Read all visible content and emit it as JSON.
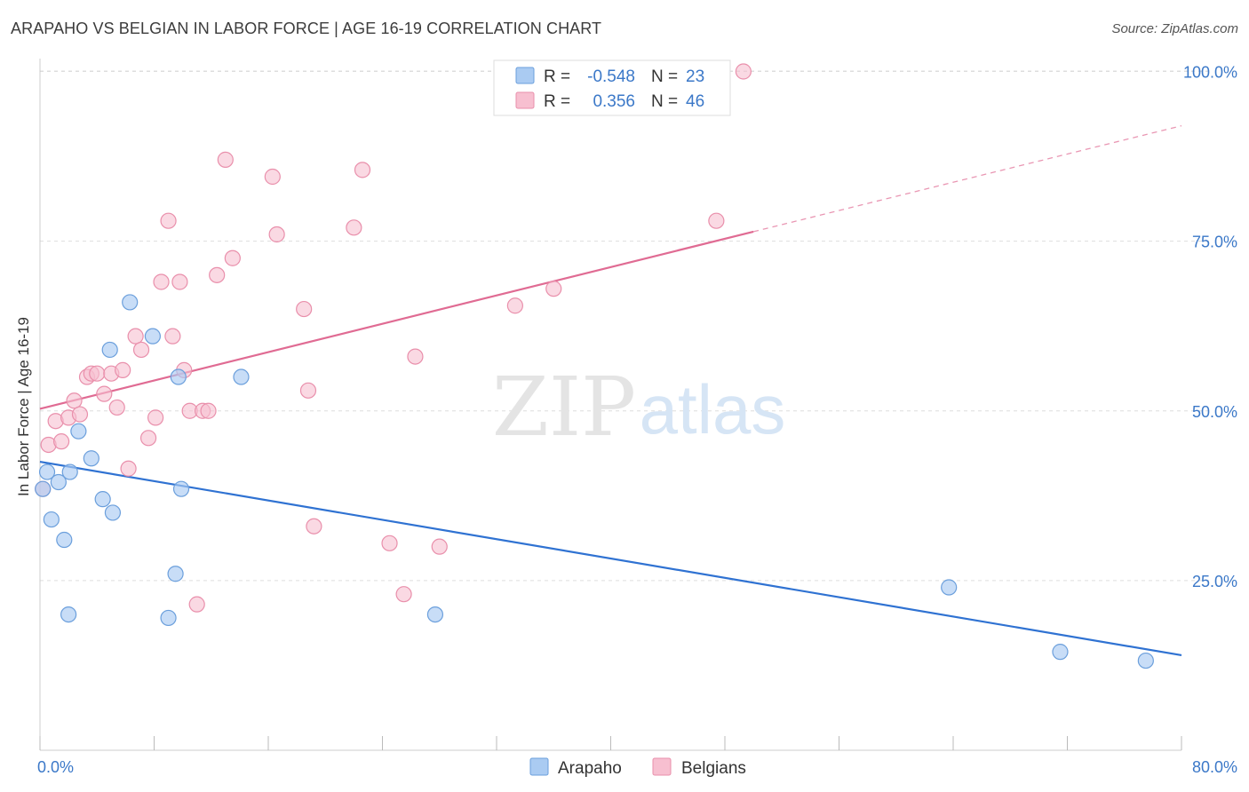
{
  "title": "ARAPAHO VS BELGIAN IN LABOR FORCE | AGE 16-19 CORRELATION CHART",
  "source": "Source: ZipAtlas.com",
  "watermark": {
    "zip": "ZIP",
    "atlas": "atlas"
  },
  "colors": {
    "arapaho_fill": "#aacbf2",
    "arapaho_stroke": "#6b9fdc",
    "arapaho_line": "#2f72d2",
    "belgian_fill": "#f7bfd0",
    "belgian_stroke": "#e98fab",
    "belgian_line": "#e06b93",
    "axis_label": "#3b78c8",
    "grid": "#dddddd"
  },
  "legend": {
    "r_label": "R =",
    "n_label": "N =",
    "rows": [
      {
        "series": "Arapaho",
        "r": "-0.548",
        "n": "23"
      },
      {
        "series": "Belgians",
        "r": "0.356",
        "n": "46"
      }
    ]
  },
  "chart_data": {
    "type": "scatter",
    "title": "ARAPAHO VS BELGIAN IN LABOR FORCE | AGE 16-19 CORRELATION CHART",
    "xlabel": "",
    "ylabel": "In Labor Force | Age 16-19",
    "xlim": [
      0,
      80
    ],
    "ylim": [
      0,
      102
    ],
    "x_tick_labels": [
      {
        "value": 0,
        "label": "0.0%"
      },
      {
        "value": 80,
        "label": "80.0%"
      }
    ],
    "y_tick_labels": [
      {
        "value": 25,
        "label": "25.0%"
      },
      {
        "value": 50,
        "label": "50.0%"
      },
      {
        "value": 75,
        "label": "75.0%"
      },
      {
        "value": 100,
        "label": "100.0%"
      }
    ],
    "grid": true,
    "legend_position": "bottom-center",
    "series": [
      {
        "name": "Arapaho",
        "r": -0.548,
        "n": 23,
        "points": [
          [
            0.2,
            38.5
          ],
          [
            0.5,
            41
          ],
          [
            0.8,
            34
          ],
          [
            1.3,
            39.5
          ],
          [
            1.7,
            31
          ],
          [
            2.0,
            20
          ],
          [
            2.1,
            41
          ],
          [
            2.7,
            47
          ],
          [
            3.6,
            43
          ],
          [
            4.4,
            37
          ],
          [
            5.1,
            35
          ],
          [
            4.9,
            59
          ],
          [
            6.3,
            66
          ],
          [
            7.9,
            61
          ],
          [
            9.7,
            55
          ],
          [
            9.9,
            38.5
          ],
          [
            9.5,
            26
          ],
          [
            9.0,
            19.5
          ],
          [
            14.1,
            55
          ],
          [
            27.7,
            20
          ],
          [
            63.7,
            24
          ],
          [
            71.5,
            14.5
          ],
          [
            77.5,
            13.2
          ]
        ],
        "trend": {
          "x": [
            0,
            80
          ],
          "y": [
            42.5,
            14
          ]
        }
      },
      {
        "name": "Belgians",
        "r": 0.356,
        "n": 46,
        "points": [
          [
            0.2,
            38.5
          ],
          [
            0.6,
            45
          ],
          [
            1.1,
            48.5
          ],
          [
            1.5,
            45.5
          ],
          [
            2.0,
            49
          ],
          [
            2.4,
            51.5
          ],
          [
            2.8,
            49.5
          ],
          [
            3.3,
            55
          ],
          [
            3.6,
            55.5
          ],
          [
            4.0,
            55.5
          ],
          [
            4.5,
            52.5
          ],
          [
            5.0,
            55.5
          ],
          [
            5.4,
            50.5
          ],
          [
            5.8,
            56
          ],
          [
            6.2,
            41.5
          ],
          [
            6.7,
            61
          ],
          [
            7.1,
            59
          ],
          [
            7.6,
            46
          ],
          [
            8.1,
            49
          ],
          [
            8.5,
            69
          ],
          [
            9.0,
            78
          ],
          [
            9.3,
            61
          ],
          [
            9.8,
            69
          ],
          [
            10.1,
            56
          ],
          [
            10.5,
            50
          ],
          [
            11.0,
            21.5
          ],
          [
            11.4,
            50
          ],
          [
            11.8,
            50
          ],
          [
            12.4,
            70
          ],
          [
            13.0,
            87
          ],
          [
            13.5,
            72.5
          ],
          [
            16.3,
            84.5
          ],
          [
            16.6,
            76
          ],
          [
            18.5,
            65
          ],
          [
            18.8,
            53
          ],
          [
            19.2,
            33
          ],
          [
            22.0,
            77
          ],
          [
            22.6,
            85.5
          ],
          [
            24.5,
            30.5
          ],
          [
            25.5,
            23
          ],
          [
            26.3,
            58
          ],
          [
            28.0,
            30
          ],
          [
            33.3,
            65.5
          ],
          [
            36.0,
            68
          ],
          [
            47.4,
            78
          ],
          [
            49.3,
            100
          ]
        ],
        "trend": {
          "x": [
            0,
            50
          ],
          "y": [
            50.3,
            76.4
          ]
        },
        "trend_dashed_extension": {
          "x": [
            50,
            80
          ],
          "y": [
            76.4,
            92
          ]
        }
      }
    ]
  }
}
